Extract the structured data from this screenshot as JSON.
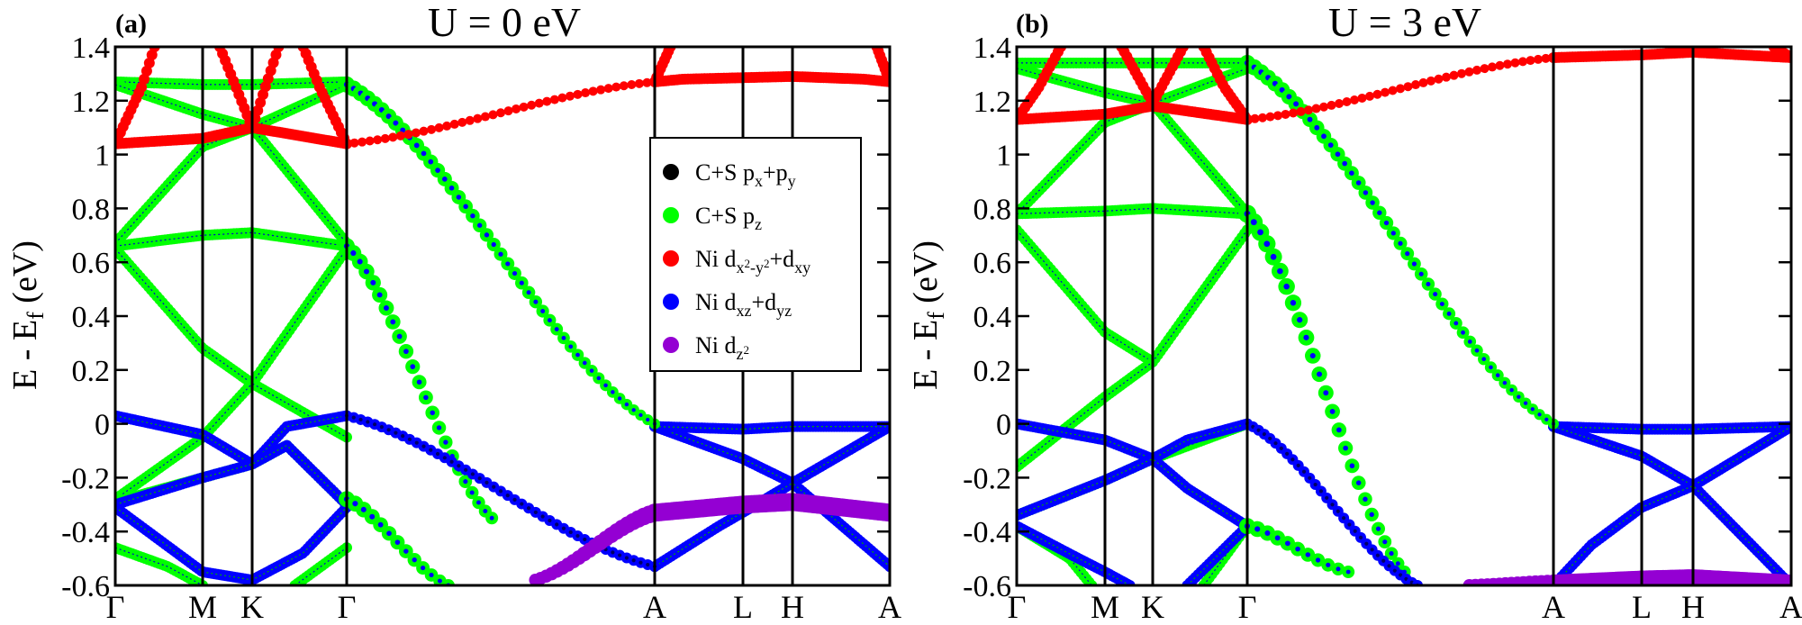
{
  "figure": {
    "y_axis_label_main": "E - E",
    "y_axis_label_sub": "f",
    "y_axis_label_unit": " (eV)"
  },
  "colors": {
    "black": "#000000",
    "green": "#00ff00",
    "red": "#ff0000",
    "blue": "#0000ff",
    "purple": "#9400d3"
  },
  "legend": {
    "entries": [
      {
        "color": "#000000",
        "parts": [
          [
            "C+S p",
            ""
          ],
          [
            "x",
            "sub"
          ],
          [
            "+p",
            ""
          ],
          [
            "y",
            "sub"
          ]
        ]
      },
      {
        "color": "#00ff00",
        "parts": [
          [
            "C+S p",
            ""
          ],
          [
            "z",
            "sub"
          ]
        ]
      },
      {
        "color": "#ff0000",
        "parts": [
          [
            "Ni d",
            ""
          ],
          [
            "x",
            "sub"
          ],
          [
            "2",
            "subsup"
          ],
          [
            "-y",
            "sub"
          ],
          [
            "2",
            "subsup"
          ],
          [
            "+d",
            ""
          ],
          [
            "xy",
            "sub"
          ]
        ]
      },
      {
        "color": "#0000ff",
        "parts": [
          [
            "Ni d",
            ""
          ],
          [
            "xz",
            "sub"
          ],
          [
            "+d",
            ""
          ],
          [
            "yz",
            "sub"
          ]
        ]
      },
      {
        "color": "#9400d3",
        "parts": [
          [
            "Ni d",
            ""
          ],
          [
            "z",
            "sub"
          ],
          [
            "2",
            "subsup"
          ]
        ]
      }
    ]
  },
  "chart_data": [
    {
      "type": "scatter",
      "panel_label": "(a)",
      "title": "U = 0 eV",
      "ylim": [
        -0.6,
        1.4
      ],
      "yticks": [
        "-0.6",
        "-0.4",
        "-0.2",
        "0",
        "0.2",
        "0.4",
        "0.6",
        "0.8",
        "1",
        "1.2",
        "1.4"
      ],
      "k_labels": [
        "Γ",
        "M",
        "K",
        "Γ",
        "A",
        "L",
        "H",
        "A"
      ],
      "k_label_positions": [
        0,
        1,
        1.577,
        2.732,
        6.272,
        7.272,
        7.849,
        9.004
      ],
      "k_range": [
        0,
        9.004
      ],
      "gap_segment": {
        "start_k": 2.732,
        "end_k": 6.272,
        "series": [
          {
            "name": "C+S pz - dispersive band",
            "start": 1.26,
            "end": 0.0,
            "color": "#00ff00",
            "r_start": 9,
            "r_end": 6,
            "n": 44
          },
          {
            "name": "Ni dx2-y2+dxy - upper",
            "start": 1.04,
            "end": 1.27,
            "color": "#ff0000",
            "r_start": 5,
            "r_end": 5,
            "n": 40
          },
          {
            "name": "C+S pz - mid band",
            "start": 0.66,
            "end": -0.35,
            "color": "#00ff00",
            "r_start": 9,
            "r_end": 7,
            "n": 22,
            "end_k": 4.4
          },
          {
            "name": "Ni dxz+dyz - band",
            "start": 0.03,
            "end": -0.53,
            "color": "#0000ff",
            "r_start": 6,
            "r_end": 6,
            "n": 44
          },
          {
            "name": "Ni dz2 - flat",
            "start": -0.58,
            "end": -0.33,
            "color": "#9400d3",
            "r_start": 7,
            "r_end": 10,
            "n": 22,
            "start_k": 4.9
          },
          {
            "name": "C+S pz - lower",
            "start": -0.28,
            "end": -0.6,
            "color": "#00ff00",
            "r_start": 9,
            "r_end": 7,
            "n": 12,
            "end_k": 3.9
          }
        ]
      },
      "bands": [
        {
          "color": "#00ff00",
          "r": 6,
          "k": [
            0,
            1,
            1.577,
            2.732
          ],
          "e": [
            1.27,
            1.26,
            1.26,
            1.27
          ]
        },
        {
          "color": "#00ff00",
          "r": 6,
          "k": [
            0,
            1,
            1.577,
            2.732
          ],
          "e": [
            1.26,
            1.15,
            1.1,
            1.26
          ]
        },
        {
          "color": "#00ff00",
          "r": 6,
          "k": [
            0,
            1,
            1.577,
            2.732
          ],
          "e": [
            0.67,
            1.03,
            1.1,
            0.67
          ]
        },
        {
          "color": "#00ff00",
          "r": 6,
          "k": [
            0,
            1,
            1.577,
            2.732
          ],
          "e": [
            0.66,
            0.7,
            0.71,
            0.66
          ]
        },
        {
          "color": "#00ff00",
          "r": 6,
          "k": [
            0,
            1,
            1.577,
            2.732
          ],
          "e": [
            0.65,
            0.28,
            0.15,
            0.65
          ]
        },
        {
          "color": "#00ff00",
          "r": 6,
          "k": [
            0,
            1,
            1.577,
            2.732
          ],
          "e": [
            -0.28,
            -0.05,
            0.15,
            -0.05
          ]
        },
        {
          "color": "#00ff00",
          "r": 6,
          "k": [
            0,
            1,
            1.577,
            2.0,
            2.732
          ],
          "e": [
            -0.29,
            -0.2,
            -0.15,
            -0.08,
            -0.3
          ]
        },
        {
          "color": "#00ff00",
          "r": 6,
          "k": [
            0,
            0.6,
            1.0
          ],
          "e": [
            -0.46,
            -0.53,
            -0.6
          ]
        },
        {
          "color": "#00ff00",
          "r": 6,
          "k": [
            2.1,
            2.732
          ],
          "e": [
            -0.6,
            -0.46
          ]
        },
        {
          "color": "#ff0000",
          "r": 6,
          "k": [
            0,
            0.3,
            0.45
          ],
          "e": [
            1.04,
            1.25,
            1.4
          ]
        },
        {
          "color": "#ff0000",
          "r": 6,
          "k": [
            0,
            1,
            1.577,
            2.732
          ],
          "e": [
            1.04,
            1.06,
            1.1,
            1.04
          ]
        },
        {
          "color": "#ff0000",
          "r": 6,
          "k": [
            2.732,
            2.4,
            2.2
          ],
          "e": [
            1.04,
            1.25,
            1.4
          ]
        },
        {
          "color": "#ff0000",
          "r": 6,
          "k": [
            1.2,
            1.577,
            1.9
          ],
          "e": [
            1.4,
            1.1,
            1.4
          ]
        },
        {
          "color": "#0000ff",
          "r": 6,
          "k": [
            0,
            1,
            1.577,
            2.0,
            2.732
          ],
          "e": [
            0.03,
            -0.04,
            -0.15,
            -0.01,
            0.03
          ]
        },
        {
          "color": "#0000ff",
          "r": 6,
          "k": [
            0,
            1,
            1.577,
            2.0,
            2.732
          ],
          "e": [
            -0.3,
            -0.2,
            -0.15,
            -0.08,
            -0.3
          ]
        },
        {
          "color": "#0000ff",
          "r": 6,
          "k": [
            0,
            1,
            1.577,
            2.2,
            2.732
          ],
          "e": [
            -0.31,
            -0.55,
            -0.58,
            -0.48,
            -0.31
          ]
        },
        {
          "color": "#0000ff",
          "r": 6,
          "k": [
            6.272,
            7.272,
            7.849,
            9.004
          ],
          "e": [
            -0.01,
            -0.13,
            -0.22,
            -0.01
          ]
        },
        {
          "color": "#0000ff",
          "r": 6,
          "k": [
            6.272,
            7.272,
            7.849,
            9.004
          ],
          "e": [
            -0.01,
            -0.02,
            -0.01,
            -0.01
          ]
        },
        {
          "color": "#0000ff",
          "r": 6,
          "k": [
            6.272,
            7.0,
            7.849,
            9.004
          ],
          "e": [
            -0.53,
            -0.38,
            -0.22,
            -0.53
          ]
        },
        {
          "color": "#9400d3",
          "r": 10,
          "k": [
            6.272,
            7.272,
            7.849,
            9.004
          ],
          "e": [
            -0.33,
            -0.3,
            -0.29,
            -0.33
          ]
        },
        {
          "color": "#ff0000",
          "r": 6,
          "k": [
            6.272,
            6.6,
            7.849,
            8.7,
            9.004
          ],
          "e": [
            1.27,
            1.28,
            1.29,
            1.28,
            1.27
          ]
        },
        {
          "color": "#ff0000",
          "r": 6,
          "k": [
            6.272,
            6.45
          ],
          "e": [
            1.27,
            1.4
          ]
        },
        {
          "color": "#ff0000",
          "r": 6,
          "k": [
            9.004,
            8.85
          ],
          "e": [
            1.27,
            1.4
          ]
        }
      ]
    },
    {
      "type": "scatter",
      "panel_label": "(b)",
      "title": "U = 3 eV",
      "ylim": [
        -0.6,
        1.4
      ],
      "yticks": [
        "-0.6",
        "-0.4",
        "-0.2",
        "0",
        "0.2",
        "0.4",
        "0.6",
        "0.8",
        "1",
        "1.2",
        "1.4"
      ],
      "k_labels": [
        "Γ",
        "M",
        "K",
        "Γ",
        "A",
        "L",
        "H",
        "A"
      ],
      "k_label_positions": [
        0,
        1,
        1.577,
        2.732,
        6.272,
        7.272,
        7.849,
        9.004
      ],
      "k_range": [
        0,
        9.004
      ],
      "gap_segment": {
        "start_k": 2.732,
        "end_k": 6.272,
        "series": [
          {
            "name": "C+S pz - dispersive band",
            "start": 1.34,
            "end": 0.0,
            "color": "#00ff00",
            "r_start": 9,
            "r_end": 6,
            "n": 44
          },
          {
            "name": "Ni dx2-y2+dxy - upper",
            "start": 1.13,
            "end": 1.36,
            "color": "#ff0000",
            "r_start": 5,
            "r_end": 5,
            "n": 40
          },
          {
            "name": "C+S pz - mid band",
            "start": 0.78,
            "end": -0.55,
            "color": "#00ff00",
            "r_start": 10,
            "r_end": 7,
            "n": 24,
            "end_k": 4.55
          },
          {
            "name": "Ni dxz+dyz - band",
            "start": 0.0,
            "end": -0.6,
            "color": "#0000ff",
            "r_start": 6,
            "r_end": 6,
            "n": 30,
            "end_k": 4.7
          },
          {
            "name": "Ni dz2 - flat",
            "start": -0.6,
            "end": -0.59,
            "color": "#9400d3",
            "r_start": 7,
            "r_end": 9,
            "n": 14,
            "start_k": 5.3
          },
          {
            "name": "C+S pz - lower",
            "start": -0.38,
            "end": -0.55,
            "color": "#00ff00",
            "r_start": 9,
            "r_end": 7,
            "n": 10,
            "end_k": 3.9
          }
        ]
      },
      "bands": [
        {
          "color": "#00ff00",
          "r": 6,
          "k": [
            0,
            1,
            1.577,
            2.732
          ],
          "e": [
            1.34,
            1.34,
            1.34,
            1.34
          ]
        },
        {
          "color": "#00ff00",
          "r": 6,
          "k": [
            0,
            1,
            1.577,
            2.732
          ],
          "e": [
            1.32,
            1.23,
            1.19,
            1.32
          ]
        },
        {
          "color": "#00ff00",
          "r": 6,
          "k": [
            0,
            1,
            1.577,
            2.732
          ],
          "e": [
            0.78,
            1.12,
            1.19,
            0.78
          ]
        },
        {
          "color": "#00ff00",
          "r": 6,
          "k": [
            0,
            1,
            1.577,
            2.732
          ],
          "e": [
            0.78,
            0.79,
            0.8,
            0.78
          ]
        },
        {
          "color": "#00ff00",
          "r": 6,
          "k": [
            0,
            1,
            1.577,
            2.732
          ],
          "e": [
            0.72,
            0.34,
            0.23,
            0.72
          ]
        },
        {
          "color": "#00ff00",
          "r": 6,
          "k": [
            0,
            1,
            1.577,
            2.732
          ],
          "e": [
            -0.16,
            0.1,
            0.23,
            0.72
          ]
        },
        {
          "color": "#00ff00",
          "r": 6,
          "k": [
            0,
            1,
            1.577,
            2.732
          ],
          "e": [
            -0.34,
            -0.21,
            -0.13,
            0.0
          ]
        },
        {
          "color": "#00ff00",
          "r": 6,
          "k": [
            0,
            0.6,
            0.85
          ],
          "e": [
            -0.38,
            -0.5,
            -0.6
          ]
        },
        {
          "color": "#00ff00",
          "r": 6,
          "k": [
            2.2,
            2.732
          ],
          "e": [
            -0.6,
            -0.38
          ]
        },
        {
          "color": "#ff0000",
          "r": 6,
          "k": [
            0,
            0.25,
            0.5
          ],
          "e": [
            1.13,
            1.25,
            1.4
          ]
        },
        {
          "color": "#ff0000",
          "r": 6,
          "k": [
            0,
            1,
            1.577,
            2.732
          ],
          "e": [
            1.13,
            1.15,
            1.18,
            1.13
          ]
        },
        {
          "color": "#ff0000",
          "r": 6,
          "k": [
            2.732,
            2.45,
            2.2
          ],
          "e": [
            1.13,
            1.25,
            1.4
          ]
        },
        {
          "color": "#ff0000",
          "r": 6,
          "k": [
            1.2,
            1.577,
            1.95
          ],
          "e": [
            1.4,
            1.19,
            1.4
          ]
        },
        {
          "color": "#0000ff",
          "r": 6,
          "k": [
            0,
            1,
            1.577,
            2.0,
            2.732
          ],
          "e": [
            -0.0,
            -0.06,
            -0.13,
            -0.06,
            0.0
          ]
        },
        {
          "color": "#0000ff",
          "r": 6,
          "k": [
            0,
            1,
            1.577,
            2.0,
            2.732
          ],
          "e": [
            -0.34,
            -0.21,
            -0.13,
            -0.24,
            -0.38
          ]
        },
        {
          "color": "#0000ff",
          "r": 6,
          "k": [
            0,
            0.7,
            1.3
          ],
          "e": [
            -0.38,
            -0.5,
            -0.6
          ]
        },
        {
          "color": "#0000ff",
          "r": 6,
          "k": [
            2.0,
            2.732
          ],
          "e": [
            -0.6,
            -0.38
          ]
        },
        {
          "color": "#0000ff",
          "r": 6,
          "k": [
            6.272,
            7.272,
            7.849,
            9.004
          ],
          "e": [
            -0.01,
            -0.02,
            -0.02,
            -0.01
          ]
        },
        {
          "color": "#0000ff",
          "r": 6,
          "k": [
            6.272,
            7.272,
            7.849,
            9.004
          ],
          "e": [
            -0.01,
            -0.12,
            -0.23,
            -0.01
          ]
        },
        {
          "color": "#0000ff",
          "r": 6,
          "k": [
            6.272,
            6.7,
            7.272,
            7.849,
            9.004
          ],
          "e": [
            -0.6,
            -0.45,
            -0.31,
            -0.23,
            -0.6
          ]
        },
        {
          "color": "#9400d3",
          "r": 9,
          "k": [
            6.272,
            7.272,
            7.849,
            9.004
          ],
          "e": [
            -0.59,
            -0.575,
            -0.57,
            -0.59
          ]
        },
        {
          "color": "#ff0000",
          "r": 6,
          "k": [
            6.272,
            7.272,
            7.849,
            9.004
          ],
          "e": [
            1.36,
            1.37,
            1.38,
            1.36
          ]
        },
        {
          "color": "#ff0000",
          "r": 6,
          "k": [
            9.004,
            8.8
          ],
          "e": [
            1.36,
            1.4
          ]
        }
      ]
    }
  ]
}
